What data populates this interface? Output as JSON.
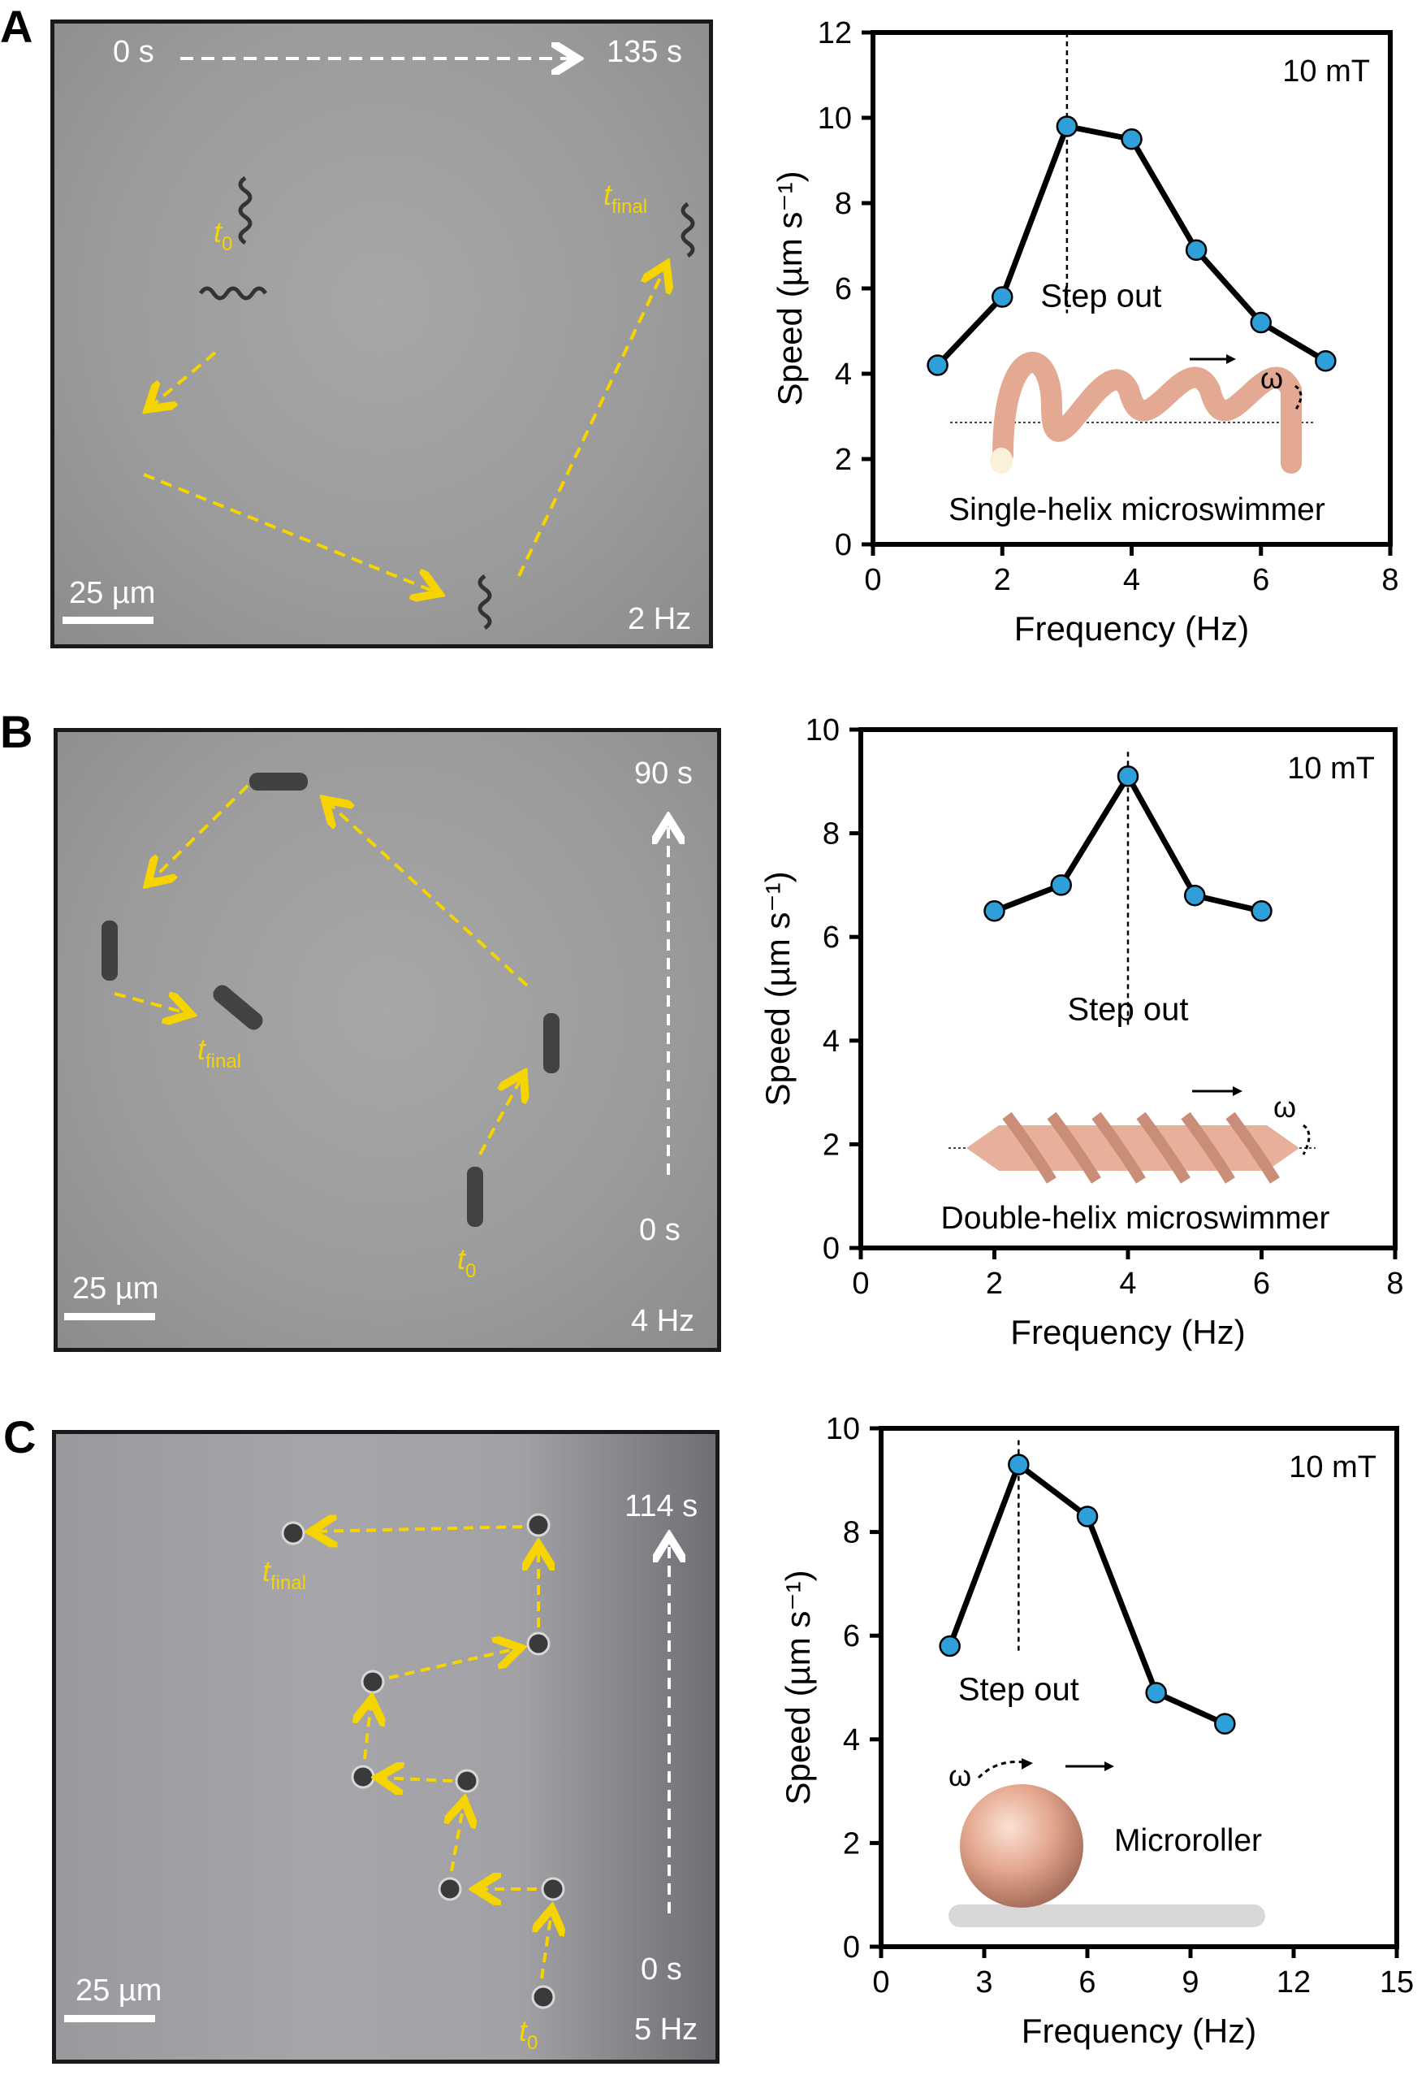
{
  "panels": [
    {
      "letter": "A",
      "micro": {
        "time_start": "0 s",
        "time_end": "135 s",
        "t0": "t",
        "t0_sub": "0",
        "tfinal": "t",
        "tfinal_sub": "final",
        "scale": "25 µm",
        "freq": "2 Hz"
      },
      "inset_label": "Single-helix microswimmer",
      "omega": "ω"
    },
    {
      "letter": "B",
      "micro": {
        "time_start": "0 s",
        "time_end": "90 s",
        "t0": "t",
        "t0_sub": "0",
        "tfinal": "t",
        "tfinal_sub": "final",
        "scale": "25 µm",
        "freq": "4 Hz"
      },
      "inset_label": "Double-helix microswimmer",
      "omega": "ω"
    },
    {
      "letter": "C",
      "micro": {
        "time_start": "0 s",
        "time_end": "114 s",
        "t0": "t",
        "t0_sub": "0",
        "tfinal": "t",
        "tfinal_sub": "final",
        "scale": "25 µm",
        "freq": "5 Hz"
      },
      "inset_label": "Microroller",
      "omega": "ω"
    }
  ],
  "chart_data": [
    {
      "type": "line",
      "x": [
        1,
        2,
        3,
        4,
        5,
        6,
        7
      ],
      "y": [
        4.2,
        5.8,
        9.8,
        9.5,
        6.9,
        5.2,
        4.3
      ],
      "xlabel": "Frequency (Hz)",
      "ylabel": "Speed (µm s⁻¹)",
      "xlim": [
        0,
        8
      ],
      "ylim": [
        0,
        12
      ],
      "xticks": [
        0,
        2,
        4,
        6,
        8
      ],
      "yticks": [
        0,
        2,
        4,
        6,
        8,
        10,
        12
      ],
      "annotation": "10 mT",
      "stepout_label": "Step out",
      "stepout_x": 3,
      "marker_color": "#2e9fd8"
    },
    {
      "type": "line",
      "x": [
        2,
        3,
        4,
        5,
        6
      ],
      "y": [
        6.5,
        7.0,
        9.1,
        6.8,
        6.5
      ],
      "xlabel": "Frequency (Hz)",
      "ylabel": "Speed (µm s⁻¹)",
      "xlim": [
        0,
        8
      ],
      "ylim": [
        0,
        10
      ],
      "xticks": [
        0,
        2,
        4,
        6,
        8
      ],
      "yticks": [
        0,
        2,
        4,
        6,
        8,
        10
      ],
      "annotation": "10 mT",
      "stepout_label": "Step out",
      "stepout_x": 4,
      "marker_color": "#2e9fd8"
    },
    {
      "type": "line",
      "x": [
        2,
        4,
        6,
        8,
        10
      ],
      "y": [
        5.8,
        9.3,
        8.3,
        4.9,
        4.3
      ],
      "xlabel": "Frequency (Hz)",
      "ylabel": "Speed (µm s⁻¹)",
      "xlim": [
        0,
        15
      ],
      "ylim": [
        0,
        10
      ],
      "xticks": [
        0,
        3,
        6,
        9,
        12,
        15
      ],
      "yticks": [
        0,
        2,
        4,
        6,
        8,
        10
      ],
      "annotation": "10 mT",
      "stepout_label": "Step out",
      "stepout_x": 4,
      "marker_color": "#2e9fd8"
    }
  ]
}
